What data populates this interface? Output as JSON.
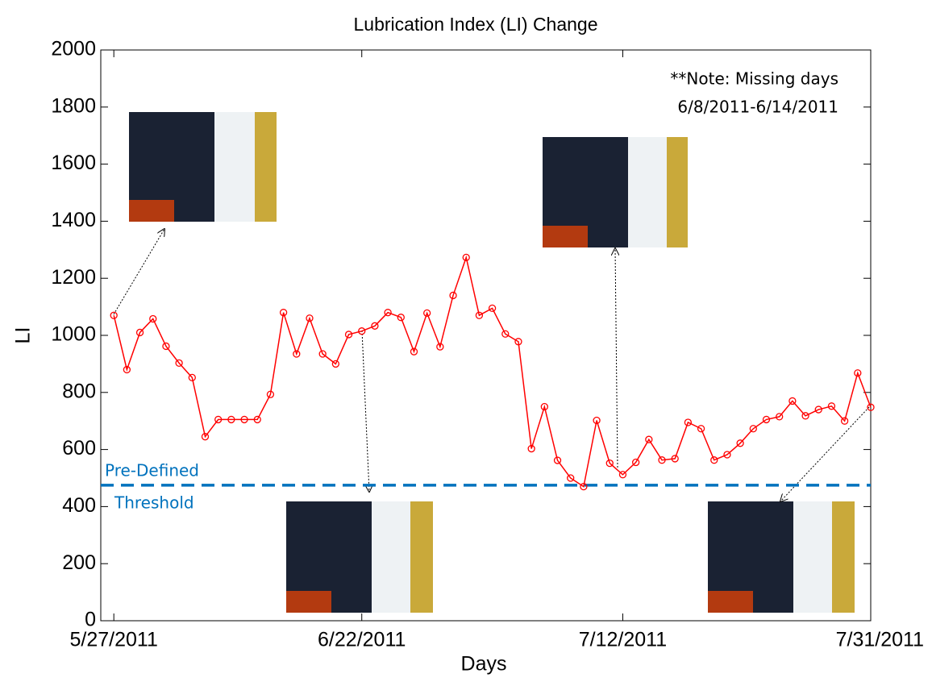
{
  "chart_data": {
    "type": "line",
    "title": "Lubrication Index (LI) Change",
    "x_label": "Days",
    "y_label": "LI",
    "categories": [
      "5/27/2011",
      null,
      null,
      null,
      null,
      null,
      null,
      null,
      null,
      null,
      null,
      null,
      null,
      null,
      null,
      null,
      null,
      null,
      null,
      "6/22/2011",
      null,
      null,
      null,
      null,
      null,
      null,
      null,
      null,
      null,
      null,
      null,
      null,
      null,
      null,
      null,
      null,
      null,
      null,
      null,
      "7/12/2011",
      null,
      null,
      null,
      null,
      null,
      null,
      null,
      null,
      null,
      null,
      null,
      null,
      null,
      null,
      null,
      null,
      null,
      null,
      "7/31/2011"
    ],
    "series": [
      {
        "name": "LI",
        "color": "#ff0000",
        "values": [
          1070,
          880,
          1010,
          1058,
          962,
          903,
          852,
          645,
          705,
          705,
          705,
          705,
          793,
          1080,
          935,
          1060,
          935,
          900,
          1003,
          1015,
          1033,
          1080,
          1063,
          943,
          1078,
          960,
          1140,
          1273,
          1070,
          1095,
          1005,
          978,
          603,
          750,
          562,
          500,
          470,
          702,
          552,
          512,
          555,
          635,
          563,
          568,
          695,
          673,
          563,
          582,
          622,
          673,
          705,
          715,
          770,
          718,
          740,
          752,
          700,
          868,
          748
        ]
      }
    ],
    "ylim": [
      0,
      2000
    ],
    "yticks": [
      0,
      200,
      400,
      600,
      800,
      1000,
      1200,
      1400,
      1600,
      1800,
      2000
    ],
    "threshold": {
      "value": 475,
      "color": "#0072bd",
      "label": [
        "Pre-Defined",
        "Threshold"
      ]
    },
    "note": [
      "**Note: Missing days",
      "6/8/2011-6/14/2011"
    ]
  }
}
